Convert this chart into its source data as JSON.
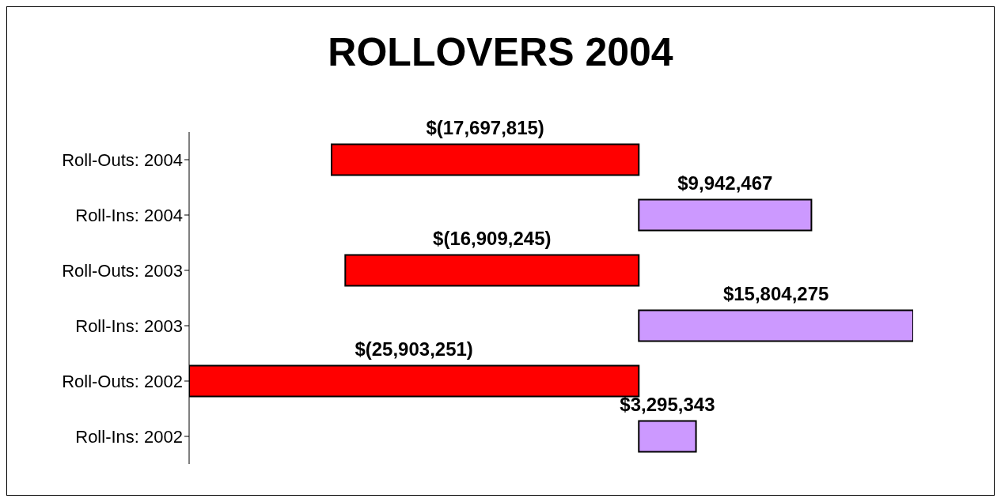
{
  "chart_data": {
    "type": "bar",
    "orientation": "horizontal",
    "title": "ROLLOVERS 2004",
    "categories": [
      "Roll-Outs: 2004",
      "Roll-Ins: 2004",
      "Roll-Outs: 2003",
      "Roll-Ins: 2003",
      "Roll-Outs: 2002",
      "Roll-Ins: 2002"
    ],
    "values": [
      -17697815,
      9942467,
      -16909245,
      15804275,
      -25903251,
      3295343
    ],
    "colors": [
      "#ff0000",
      "#cc99ff",
      "#ff0000",
      "#cc99ff",
      "#ff0000",
      "#cc99ff"
    ],
    "value_labels": [
      "$(17,697,815)",
      "$9,942,467",
      "$(16,909,245)",
      "$15,804,275",
      "$(25,903,251)",
      "$3,295,343"
    ],
    "tick_labels": "y"
  }
}
